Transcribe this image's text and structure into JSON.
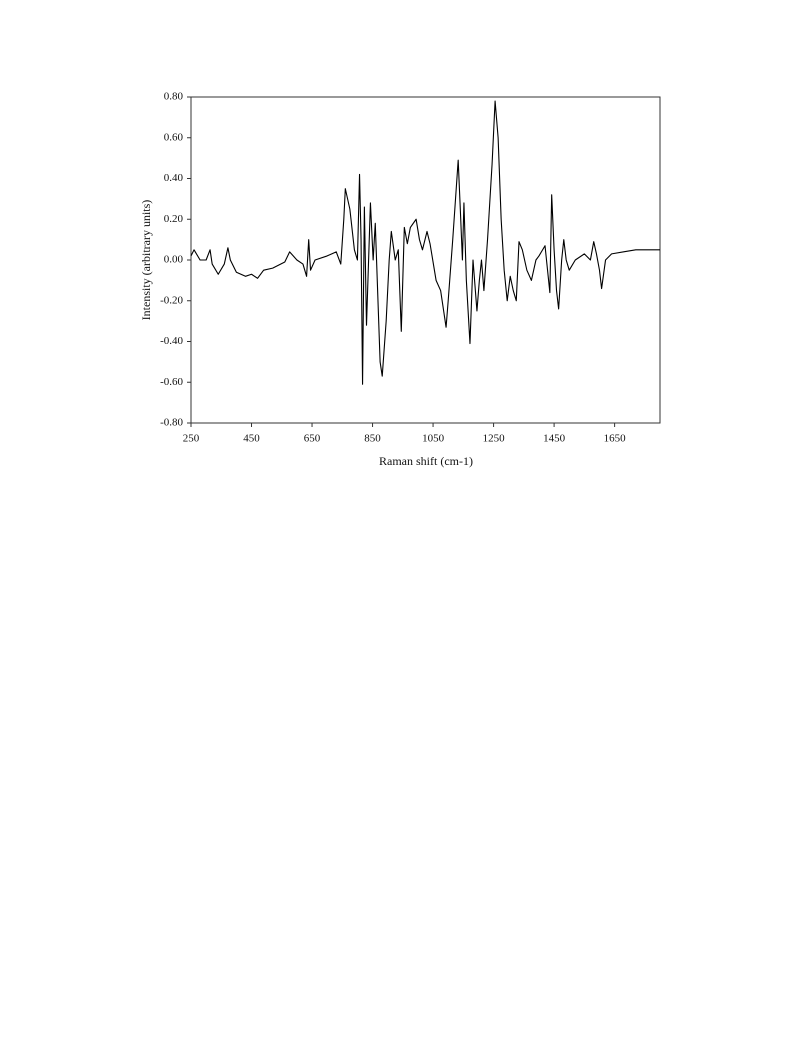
{
  "chart_data": {
    "type": "line",
    "xlabel": "Raman shift (cm-1)",
    "ylabel": "Intensity (arbitrary units)",
    "xlim": [
      250,
      1800
    ],
    "xticks": [
      250,
      450,
      650,
      850,
      1050,
      1250,
      1450,
      1650
    ],
    "ylim": [
      -0.8,
      0.8
    ],
    "yticks": [
      {
        "value": -0.8,
        "label": "-0.80"
      },
      {
        "value": -0.6,
        "label": "-0.60"
      },
      {
        "value": -0.4,
        "label": "-0.40"
      },
      {
        "value": -0.2,
        "label": "-0.20"
      },
      {
        "value": 0,
        "label": "0.00"
      },
      {
        "value": 0.2,
        "label": "0.20"
      },
      {
        "value": 0.4,
        "label": "0.40"
      },
      {
        "value": 0.6,
        "label": "0.60"
      },
      {
        "value": 0.8,
        "label": "0.80"
      }
    ],
    "x": [
      250,
      260,
      280,
      300,
      313,
      320,
      340,
      360,
      372,
      380,
      400,
      430,
      450,
      470,
      490,
      520,
      560,
      576,
      600,
      620,
      632,
      639,
      645,
      660,
      700,
      730,
      745,
      755,
      760,
      775,
      790,
      800,
      807,
      812,
      817,
      823,
      830,
      843,
      852,
      859,
      875,
      882,
      895,
      905,
      912,
      925,
      935,
      945,
      955,
      965,
      975,
      994,
      1005,
      1015,
      1030,
      1040,
      1060,
      1075,
      1093,
      1100,
      1115,
      1133,
      1140,
      1147,
      1152,
      1160,
      1172,
      1182,
      1195,
      1203,
      1210,
      1218,
      1230,
      1245,
      1255,
      1265,
      1275,
      1285,
      1295,
      1305,
      1315,
      1325,
      1334,
      1345,
      1360,
      1375,
      1390,
      1400,
      1420,
      1436,
      1442,
      1450,
      1458,
      1465,
      1475,
      1482,
      1490,
      1500,
      1520,
      1550,
      1570,
      1581,
      1590,
      1600,
      1607,
      1620,
      1640,
      1680,
      1720,
      1760,
      1800
    ],
    "series": [
      {
        "color": "#000000",
        "values": [
          0.02,
          0.05,
          0.0,
          0.0,
          0.05,
          -0.02,
          -0.07,
          -0.02,
          0.06,
          0.0,
          -0.06,
          -0.08,
          -0.07,
          -0.09,
          -0.05,
          -0.04,
          -0.01,
          0.04,
          0.0,
          -0.02,
          -0.08,
          0.1,
          -0.05,
          0.0,
          0.02,
          0.04,
          -0.02,
          0.2,
          0.35,
          0.25,
          0.05,
          0.0,
          0.42,
          0.1,
          -0.61,
          0.26,
          -0.32,
          0.28,
          0.0,
          0.18,
          -0.5,
          -0.57,
          -0.3,
          0.0,
          0.14,
          0.0,
          0.05,
          -0.35,
          0.16,
          0.08,
          0.16,
          0.2,
          0.1,
          0.05,
          0.14,
          0.08,
          -0.1,
          -0.15,
          -0.33,
          -0.2,
          0.1,
          0.49,
          0.25,
          0.0,
          0.28,
          -0.1,
          -0.41,
          0.0,
          -0.25,
          -0.1,
          0.0,
          -0.15,
          0.1,
          0.47,
          0.78,
          0.6,
          0.2,
          -0.05,
          -0.2,
          -0.08,
          -0.15,
          -0.2,
          0.09,
          0.05,
          -0.05,
          -0.1,
          0.0,
          0.02,
          0.07,
          -0.16,
          0.32,
          0.05,
          -0.15,
          -0.24,
          0.0,
          0.1,
          0.0,
          -0.05,
          0.0,
          0.03,
          0.0,
          0.09,
          0.03,
          -0.05,
          -0.14,
          0.0,
          0.03,
          0.04,
          0.05,
          0.05,
          0.05
        ]
      }
    ]
  }
}
